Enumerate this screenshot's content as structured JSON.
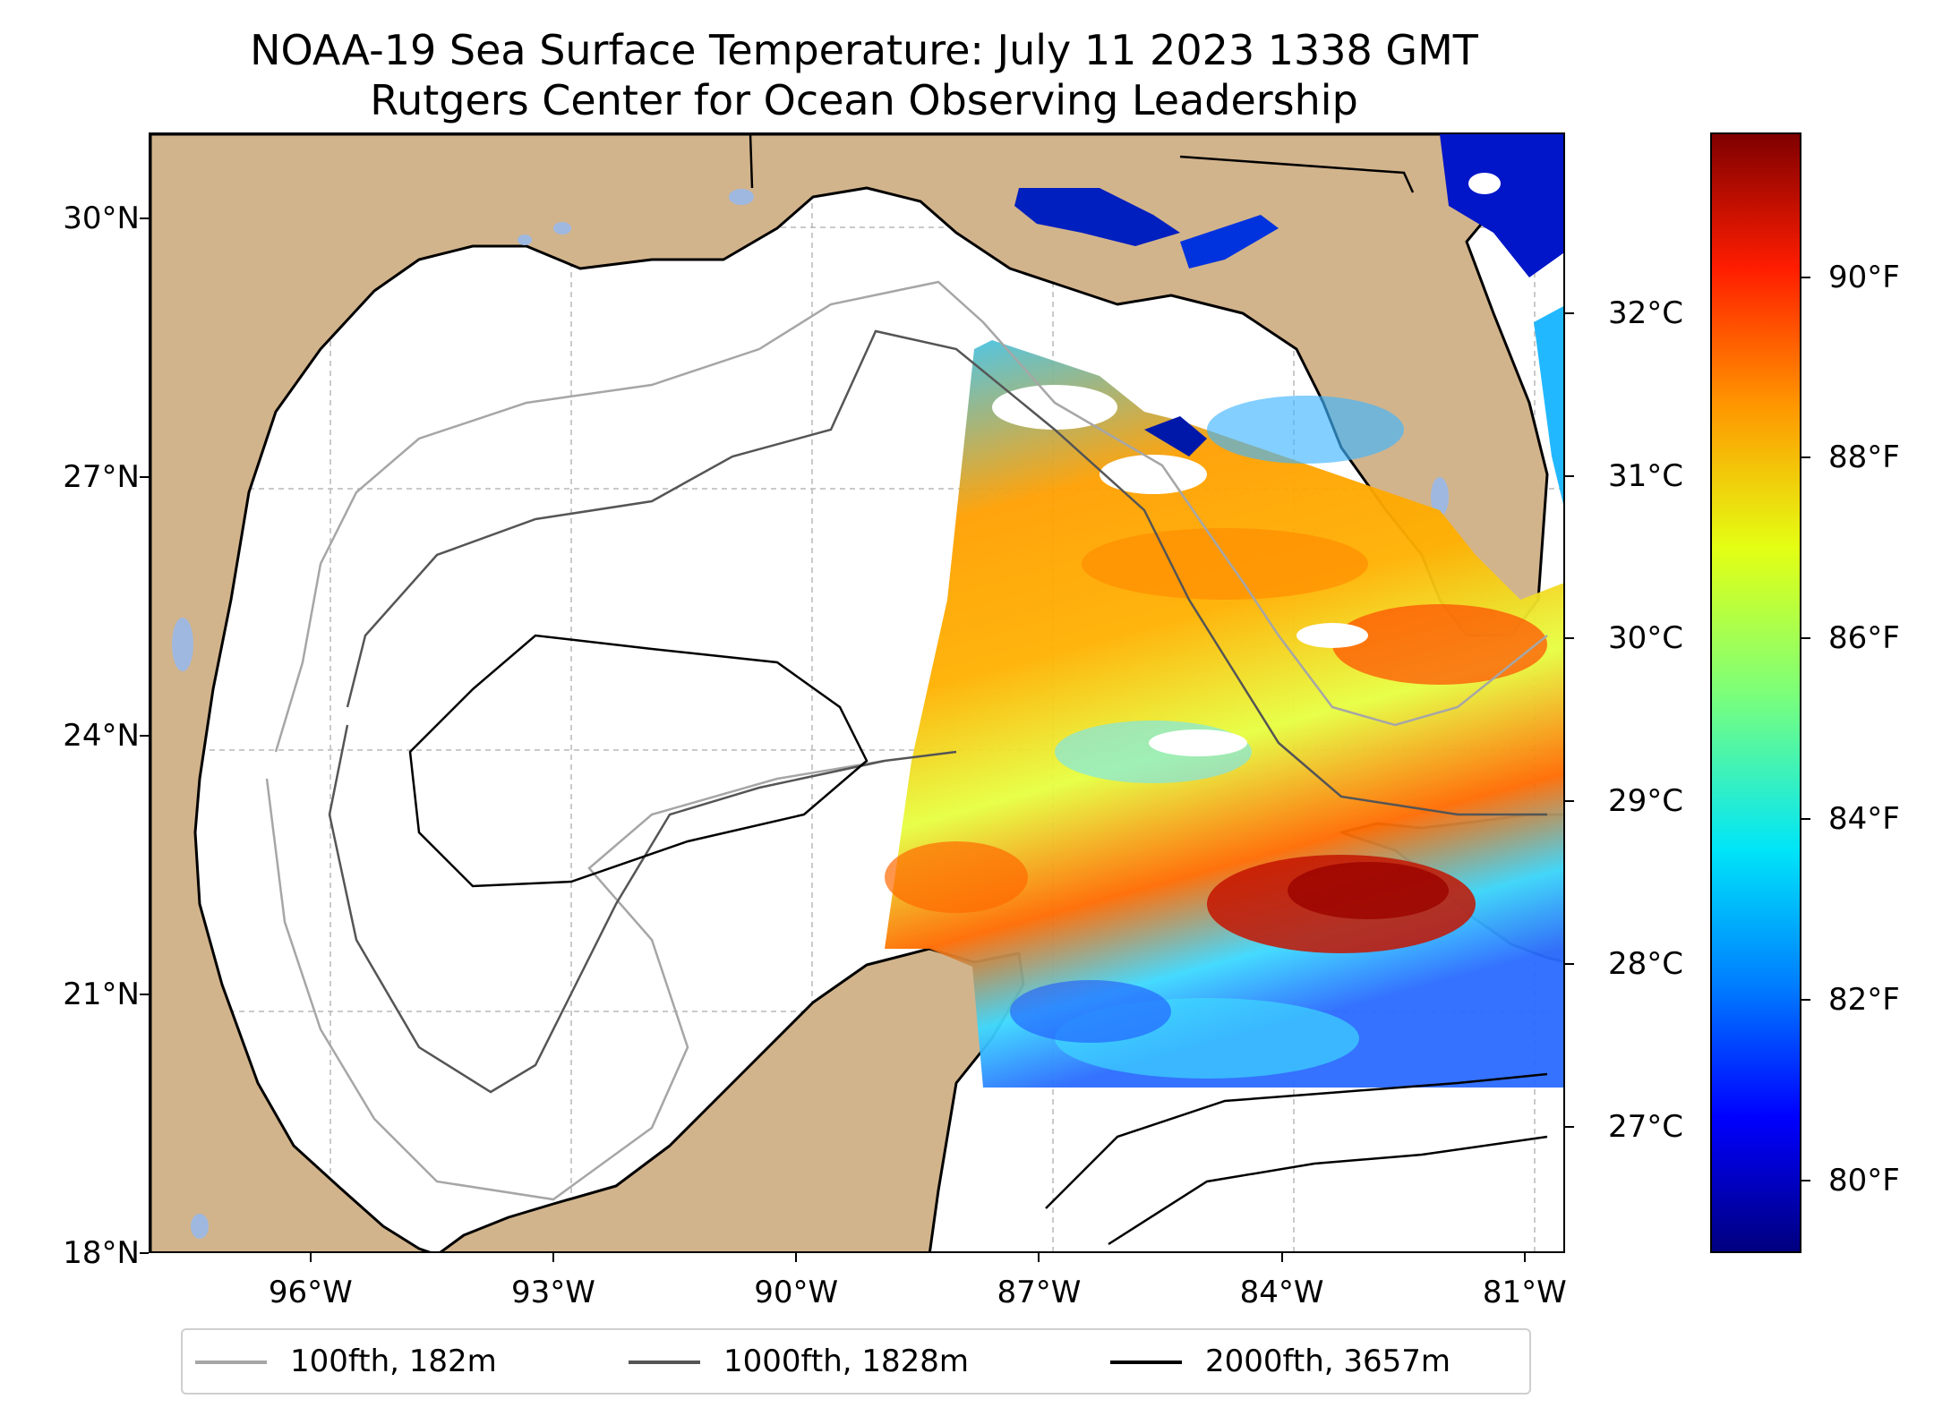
{
  "title": {
    "line1": "NOAA-19 Sea Surface Temperature: July 11 2023 1338 GMT",
    "line2": "Rutgers Center for Ocean Observing Leadership"
  },
  "map": {
    "lon_range": [
      -98,
      -80.5
    ],
    "lat_range": [
      18,
      31
    ],
    "land_color": "#d2b48c",
    "lake_color": "#9fb8e0",
    "gridlines": true,
    "lat_ticks": [
      {
        "value": 30,
        "label": "30°N"
      },
      {
        "value": 27,
        "label": "27°N"
      },
      {
        "value": 24,
        "label": "24°N"
      },
      {
        "value": 21,
        "label": "21°N"
      },
      {
        "value": 18,
        "label": "18°N"
      }
    ],
    "lon_ticks": [
      {
        "value": -96,
        "label": "96°W"
      },
      {
        "value": -93,
        "label": "93°W"
      },
      {
        "value": -90,
        "label": "90°W"
      },
      {
        "value": -87,
        "label": "87°W"
      },
      {
        "value": -84,
        "label": "84°W"
      },
      {
        "value": -81,
        "label": "81°W"
      }
    ]
  },
  "colorbar": {
    "range_f": [
      79.2,
      91.6
    ],
    "celsius_ticks": [
      {
        "value": 32,
        "label": "32°C"
      },
      {
        "value": 31,
        "label": "31°C"
      },
      {
        "value": 30,
        "label": "30°C"
      },
      {
        "value": 29,
        "label": "29°C"
      },
      {
        "value": 28,
        "label": "28°C"
      },
      {
        "value": 27,
        "label": "27°C"
      }
    ],
    "fahrenheit_ticks": [
      {
        "value": 90,
        "label": "90°F"
      },
      {
        "value": 88,
        "label": "88°F"
      },
      {
        "value": 86,
        "label": "86°F"
      },
      {
        "value": 84,
        "label": "84°F"
      },
      {
        "value": 82,
        "label": "82°F"
      },
      {
        "value": 80,
        "label": "80°F"
      }
    ]
  },
  "legend": {
    "placement": "bottom-center",
    "items": [
      {
        "label": "100fth, 182m",
        "color": "#a6a6a6"
      },
      {
        "label": "1000fth, 1828m",
        "color": "#555555"
      },
      {
        "label": "2000fth, 3657m",
        "color": "#000000"
      }
    ]
  }
}
